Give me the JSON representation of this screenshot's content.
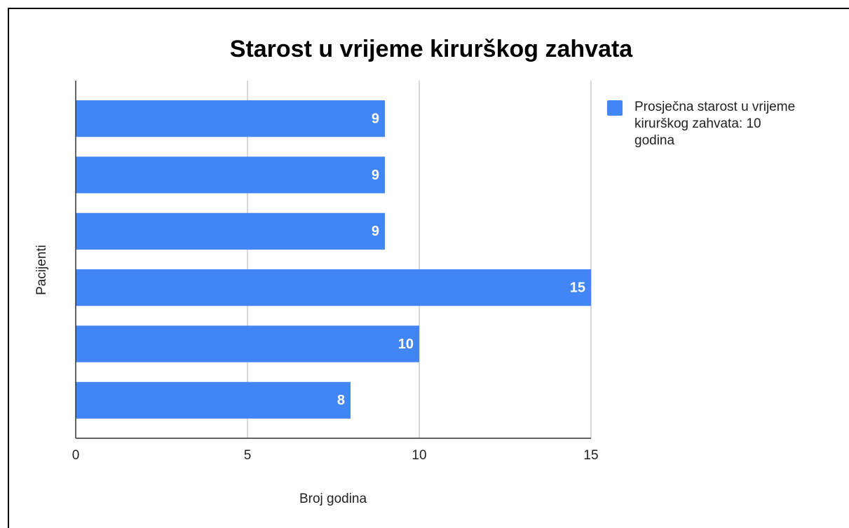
{
  "chart_data": {
    "type": "bar",
    "orientation": "horizontal",
    "title": "Starost u vrijeme kirurškog zahvata",
    "x_label": "Broj godina",
    "y_label": "Pacijenti",
    "categories": [
      null,
      null,
      null,
      null,
      null,
      null
    ],
    "series": [
      {
        "name": "Prosječna starost u vrijeme kirurškog zahvata: 10 godina",
        "color": "#4285f4",
        "values": [
          9,
          9,
          9,
          15,
          10,
          8
        ]
      }
    ],
    "xlim": [
      0,
      15
    ],
    "xticks": [
      0,
      5,
      10,
      15
    ],
    "grid": true,
    "legend": "right"
  }
}
